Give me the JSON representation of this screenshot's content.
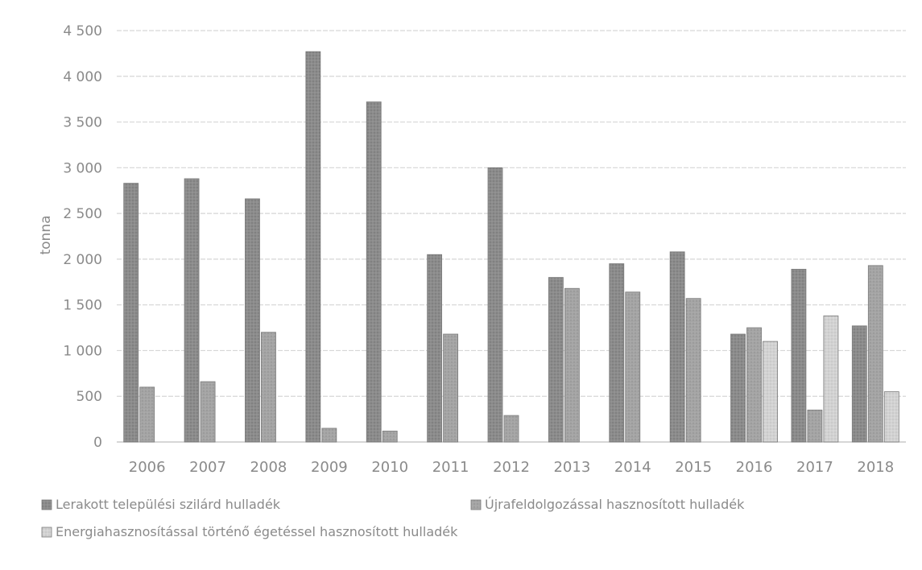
{
  "chart_data": {
    "type": "bar",
    "title": "",
    "xlabel": "",
    "ylabel": "tonna",
    "ylim": [
      0,
      4500
    ],
    "yticks": [
      "0",
      "500",
      "1 000",
      "1 500",
      "2 000",
      "2 500",
      "3 000",
      "3 500",
      "4 000",
      "4 500"
    ],
    "grid": true,
    "legend_position": "bottom",
    "categories": [
      "2006",
      "2007",
      "2008",
      "2009",
      "2010",
      "2011",
      "2012",
      "2013",
      "2014",
      "2015",
      "2016",
      "2017",
      "2018"
    ],
    "series": [
      {
        "name": "Lerakott települési szilárd hulladék",
        "color": "#8f8f8f",
        "values": [
          2830,
          2880,
          2660,
          4270,
          3720,
          2050,
          3000,
          1800,
          1950,
          2080,
          1180,
          1890,
          1270
        ]
      },
      {
        "name": "Újrafeldolgozással hasznosított hulladék",
        "color": "#a6a6a6",
        "values": [
          600,
          660,
          1200,
          150,
          120,
          1180,
          290,
          1680,
          1640,
          1570,
          1250,
          350,
          1930
        ]
      },
      {
        "name": "Energiahasznosítással történő égetéssel hasznosított hulladék",
        "color": "#cdcdcd",
        "values": [
          0,
          0,
          0,
          0,
          0,
          0,
          0,
          0,
          0,
          0,
          1100,
          1380,
          550
        ]
      }
    ]
  }
}
